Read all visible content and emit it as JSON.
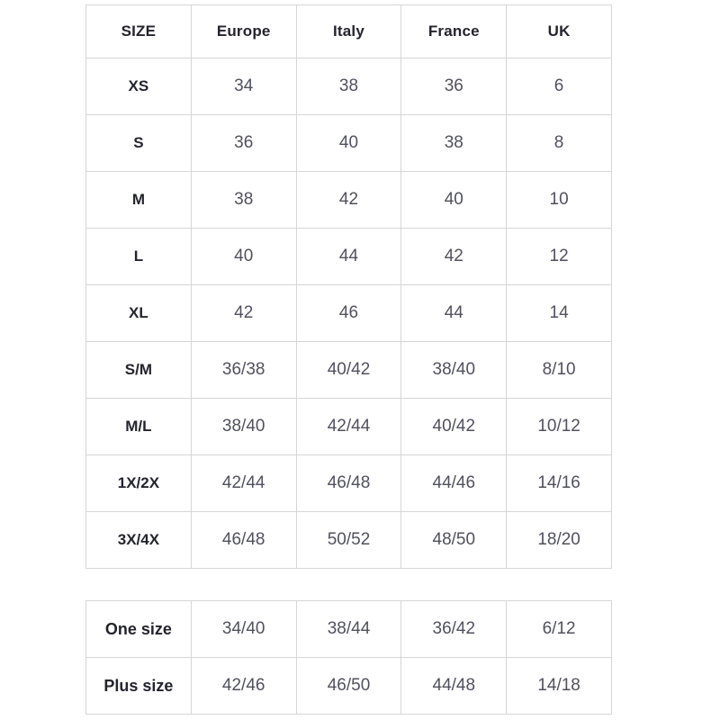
{
  "colors": {
    "background": "#ffffff",
    "grid_border": "#d6d6d6",
    "header_text": "#24242e",
    "data_text": "#51515e"
  },
  "chart_data": [
    {
      "type": "table",
      "columns": [
        "SIZE",
        "Europe",
        "Italy",
        "France",
        "UK"
      ],
      "rows": [
        [
          "XS",
          "34",
          "38",
          "36",
          "6"
        ],
        [
          "S",
          "36",
          "40",
          "38",
          "8"
        ],
        [
          "M",
          "38",
          "42",
          "40",
          "10"
        ],
        [
          "L",
          "40",
          "44",
          "42",
          "12"
        ],
        [
          "XL",
          "42",
          "46",
          "44",
          "14"
        ],
        [
          "S/M",
          "36/38",
          "40/42",
          "38/40",
          "8/10"
        ],
        [
          "M/L",
          "38/40",
          "42/44",
          "40/42",
          "10/12"
        ],
        [
          "1X/2X",
          "42/44",
          "46/48",
          "44/46",
          "14/16"
        ],
        [
          "3X/4X",
          "46/48",
          "50/52",
          "48/50",
          "18/20"
        ]
      ],
      "layout": {
        "grid": "on",
        "header_row": true,
        "label_column": true
      }
    },
    {
      "type": "table",
      "rows": [
        [
          "One size",
          "34/40",
          "38/44",
          "36/42",
          "6/12"
        ],
        [
          "Plus size",
          "42/46",
          "46/50",
          "44/48",
          "14/18"
        ]
      ],
      "layout": {
        "grid": "on",
        "header_row": false,
        "label_column": true
      }
    }
  ]
}
